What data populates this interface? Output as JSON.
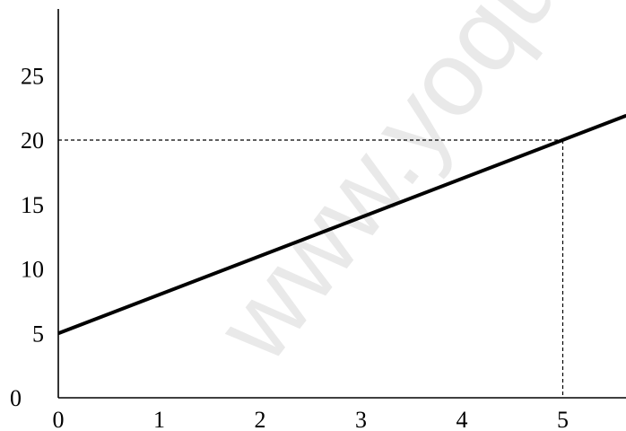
{
  "chart_data": {
    "type": "line",
    "title": "",
    "xlabel": "",
    "ylabel": "",
    "xlim": [
      0,
      5.63
    ],
    "ylim": [
      0,
      28
    ],
    "x_ticks": [
      "0",
      "1",
      "2",
      "3",
      "4",
      "5"
    ],
    "y_ticks": [
      "0",
      "5",
      "10",
      "15",
      "20",
      "25"
    ],
    "series": [
      {
        "x": [
          0,
          5.63
        ],
        "y": [
          5,
          21.9
        ]
      }
    ],
    "guide_point": {
      "x": 5,
      "y": 20
    },
    "grid": false,
    "legend": "none",
    "line_color": "#000000"
  },
  "watermark": {
    "text": "www.yoquiero"
  }
}
